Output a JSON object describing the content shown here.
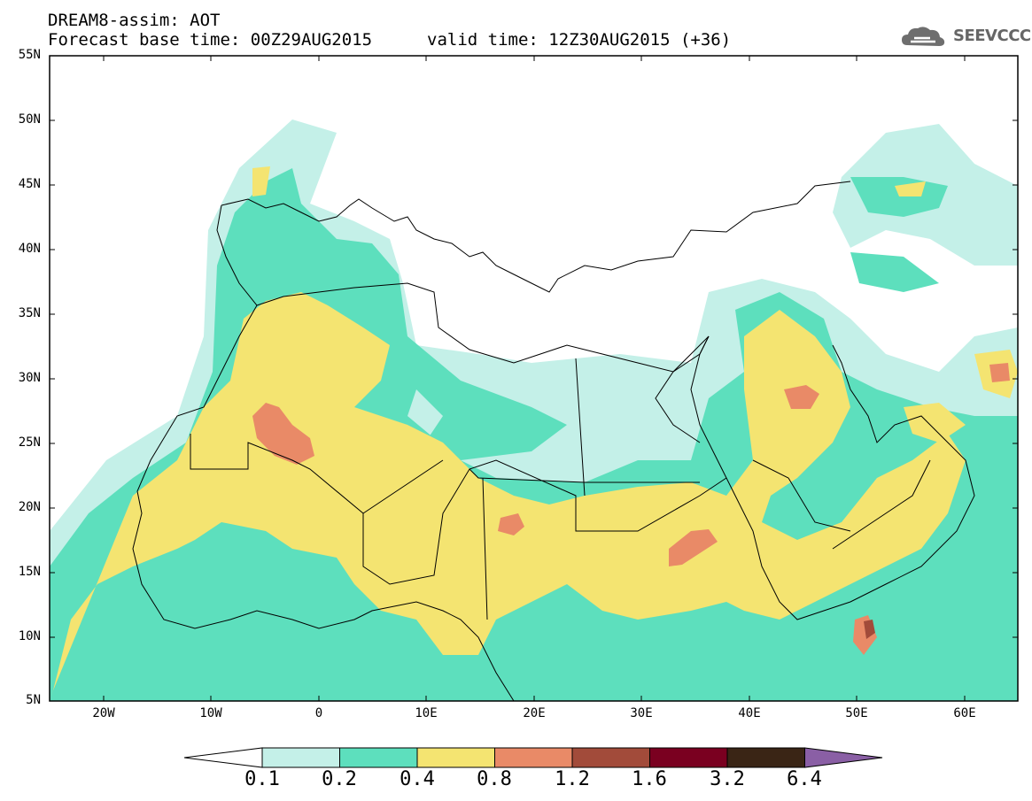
{
  "header": {
    "line1": "DREAM8-assim: AOT",
    "line2": "Forecast base time: 00Z29AUG2015",
    "valid": "valid time: 12Z30AUG2015 (+36)"
  },
  "logo": {
    "text": "SEEVCCC",
    "icon": "cloud-icon"
  },
  "map": {
    "lat_labels": [
      "55N",
      "50N",
      "45N",
      "40N",
      "35N",
      "30N",
      "25N",
      "20N",
      "15N",
      "10N",
      "5N"
    ],
    "lon_labels": [
      "20W",
      "10W",
      "0",
      "10E",
      "20E",
      "30E",
      "40E",
      "50E",
      "60E"
    ],
    "extent": {
      "lon_min": -25,
      "lon_max": 65,
      "lat_min": 5,
      "lat_max": 55
    }
  },
  "colorbar": {
    "labels": [
      "0.1",
      "0.2",
      "0.4",
      "0.8",
      "1.2",
      "1.6",
      "3.2",
      "6.4"
    ],
    "colors": [
      "#ffffff",
      "#c4f0e8",
      "#5ddfbd",
      "#f4e471",
      "#e98a67",
      "#a24b3a",
      "#7a0020",
      "#3a2515",
      "#8a5fa5"
    ]
  },
  "legend_colors": {
    "bin_0_1": "#c4f0e8",
    "bin_0_2": "#5ddfbd",
    "bin_0_4": "#f4e471",
    "bin_0_8": "#e98a67"
  }
}
